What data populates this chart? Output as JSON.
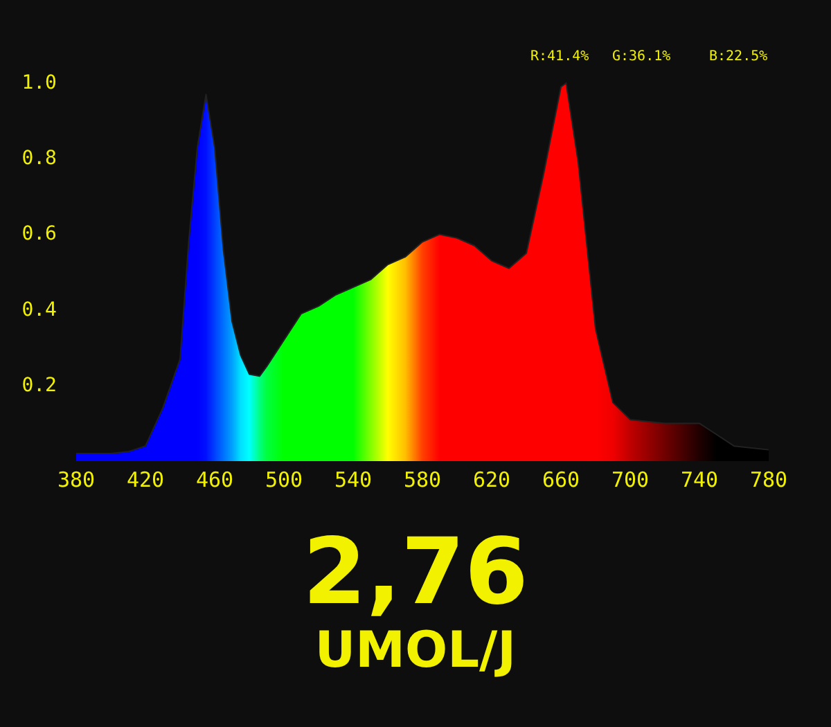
{
  "chart_data": {
    "type": "area",
    "x": [
      380,
      400,
      410,
      420,
      430,
      440,
      445,
      450,
      455,
      460,
      465,
      470,
      475,
      480,
      486,
      490,
      500,
      510,
      520,
      530,
      540,
      550,
      560,
      570,
      580,
      590,
      600,
      610,
      620,
      630,
      640,
      650,
      660,
      663,
      670,
      680,
      690,
      700,
      720,
      740,
      750,
      760,
      780
    ],
    "values": [
      0.02,
      0.02,
      0.025,
      0.04,
      0.14,
      0.27,
      0.58,
      0.83,
      0.97,
      0.83,
      0.56,
      0.37,
      0.28,
      0.23,
      0.225,
      0.25,
      0.32,
      0.39,
      0.41,
      0.44,
      0.46,
      0.48,
      0.52,
      0.54,
      0.58,
      0.6,
      0.59,
      0.57,
      0.53,
      0.51,
      0.55,
      0.76,
      0.99,
      1.0,
      0.79,
      0.35,
      0.155,
      0.11,
      0.1,
      0.1,
      0.07,
      0.04,
      0.03
    ],
    "colors": [
      "#0000ff",
      "#0000ff",
      "#0000ff",
      "#0000ff",
      "#0000ff",
      "#0000ff",
      "#0000ff",
      "#0000ff",
      "#0010ff",
      "#0040ff",
      "#0070ff",
      "#00a0ff",
      "#00e0ff",
      "#00ffff",
      "#00ff80",
      "#00ff40",
      "#00ff00",
      "#00ff00",
      "#00ff00",
      "#00ff00",
      "#00ff00",
      "#80ff00",
      "#ffff00",
      "#ffc000",
      "#ff4000",
      "#ff0000",
      "#ff0000",
      "#ff0000",
      "#ff0000",
      "#ff0000",
      "#ff0000",
      "#ff0000",
      "#ff0000",
      "#ff0000",
      "#ff0000",
      "#ff0000",
      "#f00000",
      "#c00000",
      "#700000",
      "#200000",
      "#000000",
      "#000000",
      "#000000"
    ],
    "xlim": [
      380,
      780
    ],
    "xticks": [
      380,
      420,
      460,
      500,
      540,
      580,
      620,
      660,
      700,
      740,
      780
    ],
    "ylim": [
      0,
      1
    ],
    "yticks": [
      0.2,
      0.4,
      0.6,
      0.8,
      {
        "value": 1,
        "label": "1.0"
      }
    ],
    "annotations": [
      "R:41.4%",
      "G:36.1%",
      "B:22.5%",
      "2,76",
      "UMOL/J"
    ]
  }
}
